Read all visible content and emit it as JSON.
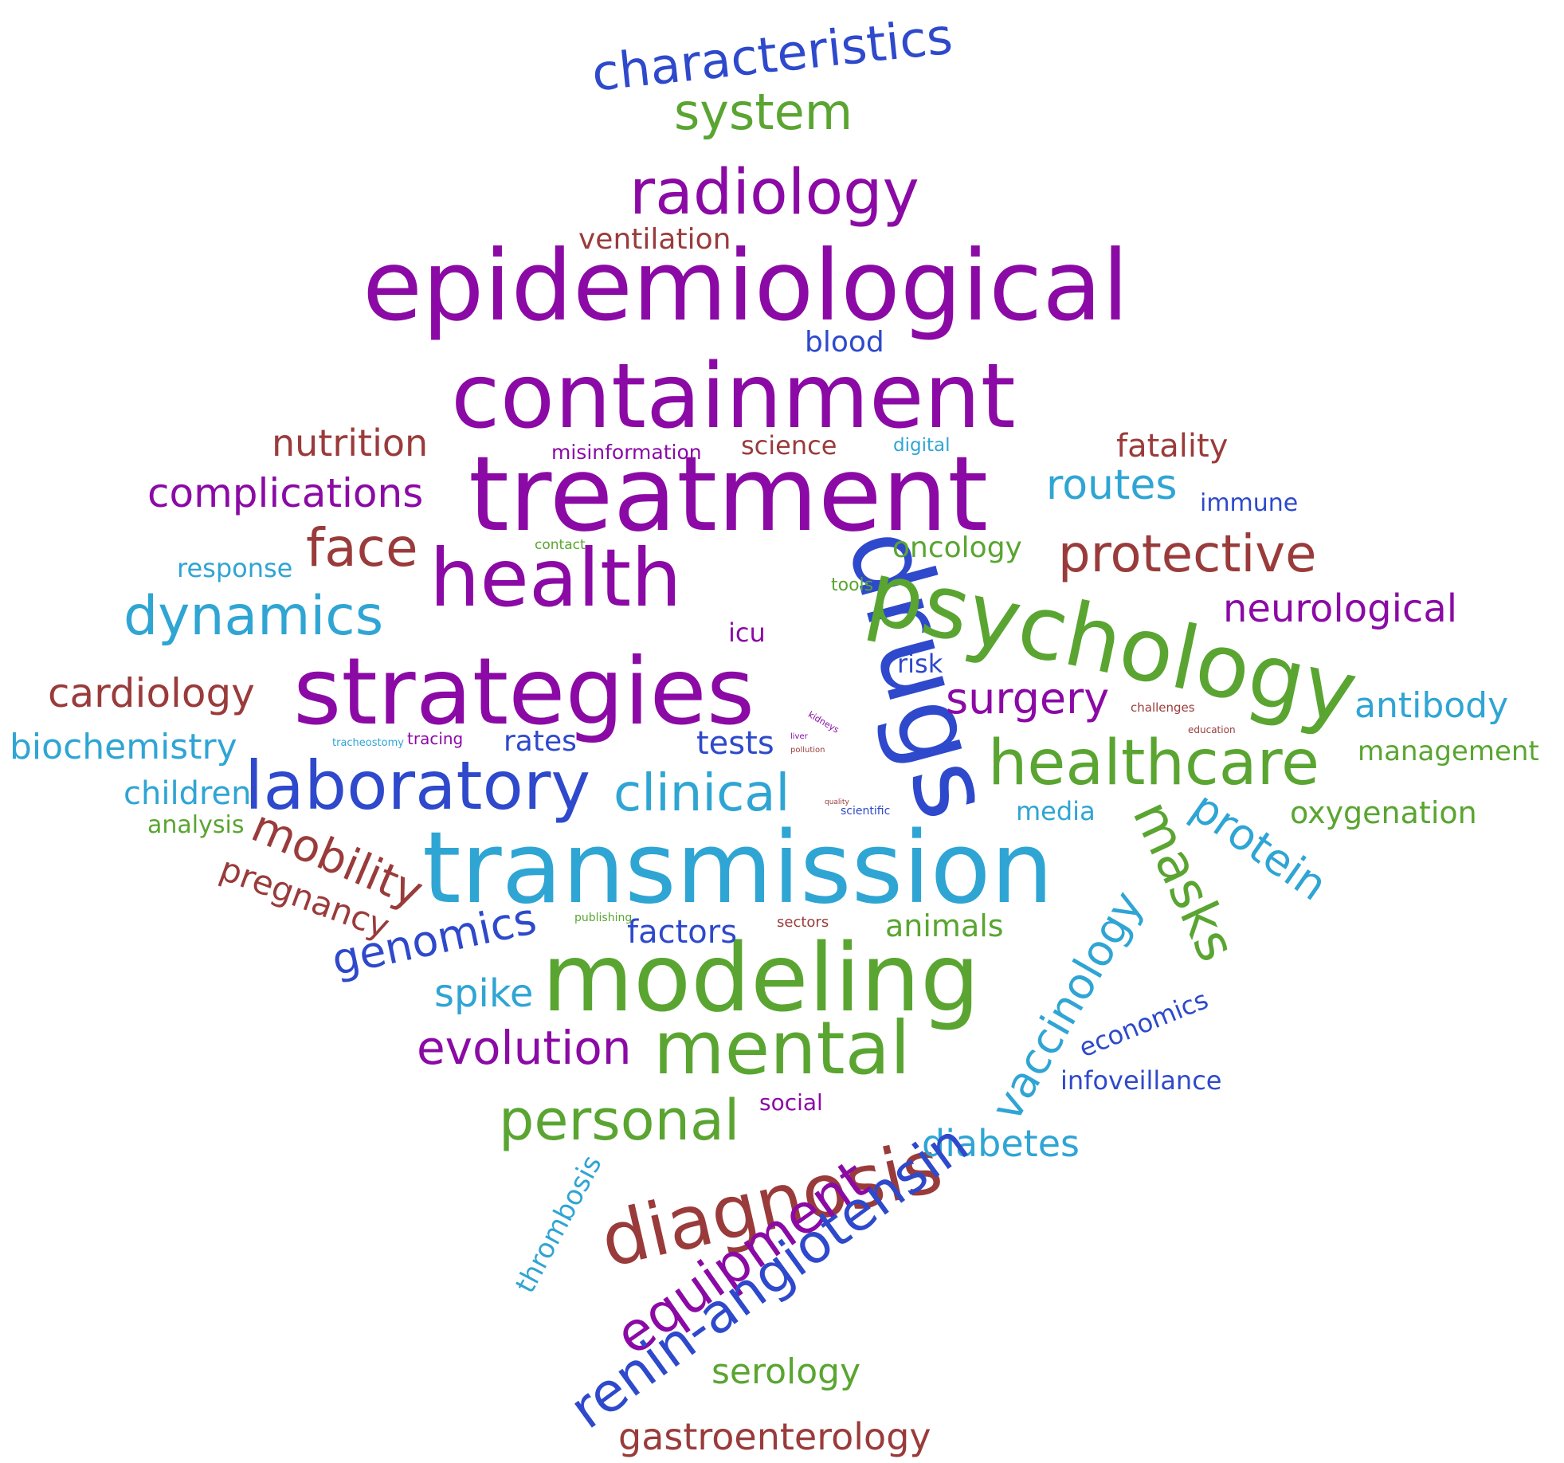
{
  "palette": {
    "purple": "#8b0aa5",
    "blue": "#2e49cb",
    "cyan": "#2fa5d4",
    "green": "#5aa531",
    "brown": "#9a3b3b"
  },
  "words": {
    "characteristics": "characteristics",
    "system": "system",
    "radiology": "radiology",
    "ventilation": "ventilation",
    "epidemiological": "epidemiological",
    "blood": "blood",
    "containment": "containment",
    "nutrition": "nutrition",
    "misinformation": "misinformation",
    "science": "science",
    "digital": "digital",
    "fatality": "fatality",
    "treatment": "treatment",
    "complications": "complications",
    "routes": "routes",
    "immune": "immune",
    "face": "face",
    "contact": "contact",
    "protective": "protective",
    "response": "response",
    "oncology": "oncology",
    "health": "health",
    "drugs": "drugs",
    "psychology": "psychology",
    "dynamics": "dynamics",
    "tools": "tools",
    "neurological": "neurological",
    "icu": "icu",
    "strategies": "strategies",
    "risk": "risk",
    "cardiology": "cardiology",
    "surgery": "surgery",
    "antibody": "antibody",
    "challenges": "challenges",
    "education": "education",
    "biochemistry": "biochemistry",
    "tracheostomy": "tracheostomy",
    "tracing": "tracing",
    "rates": "rates",
    "tests": "tests",
    "kidneys": "kidneys",
    "liver": "liver",
    "pollution": "pollution",
    "management": "management",
    "laboratory": "laboratory",
    "healthcare": "healthcare",
    "children": "children",
    "clinical": "clinical",
    "quality": "quality",
    "scientific": "scientific",
    "media": "media",
    "oxygenation": "oxygenation",
    "analysis": "analysis",
    "transmission": "transmission",
    "protein": "protein",
    "mobility": "mobility",
    "masks": "masks",
    "pregnancy": "pregnancy",
    "genomics": "genomics",
    "publishing": "publishing",
    "factors": "factors",
    "sectors": "sectors",
    "animals": "animals",
    "vaccinology": "vaccinology",
    "economics": "economics",
    "modeling": "modeling",
    "spike": "spike",
    "mental": "mental",
    "evolution": "evolution",
    "infoveillance": "infoveillance",
    "social": "social",
    "personal": "personal",
    "diagnosis": "diagnosis",
    "diabetes": "diabetes",
    "thrombosis": "thrombosis",
    "equipment": "equipment",
    "renin_angiotensin": "renin-angiotensin",
    "serology": "serology",
    "gastroenterology": "gastroenterology"
  }
}
